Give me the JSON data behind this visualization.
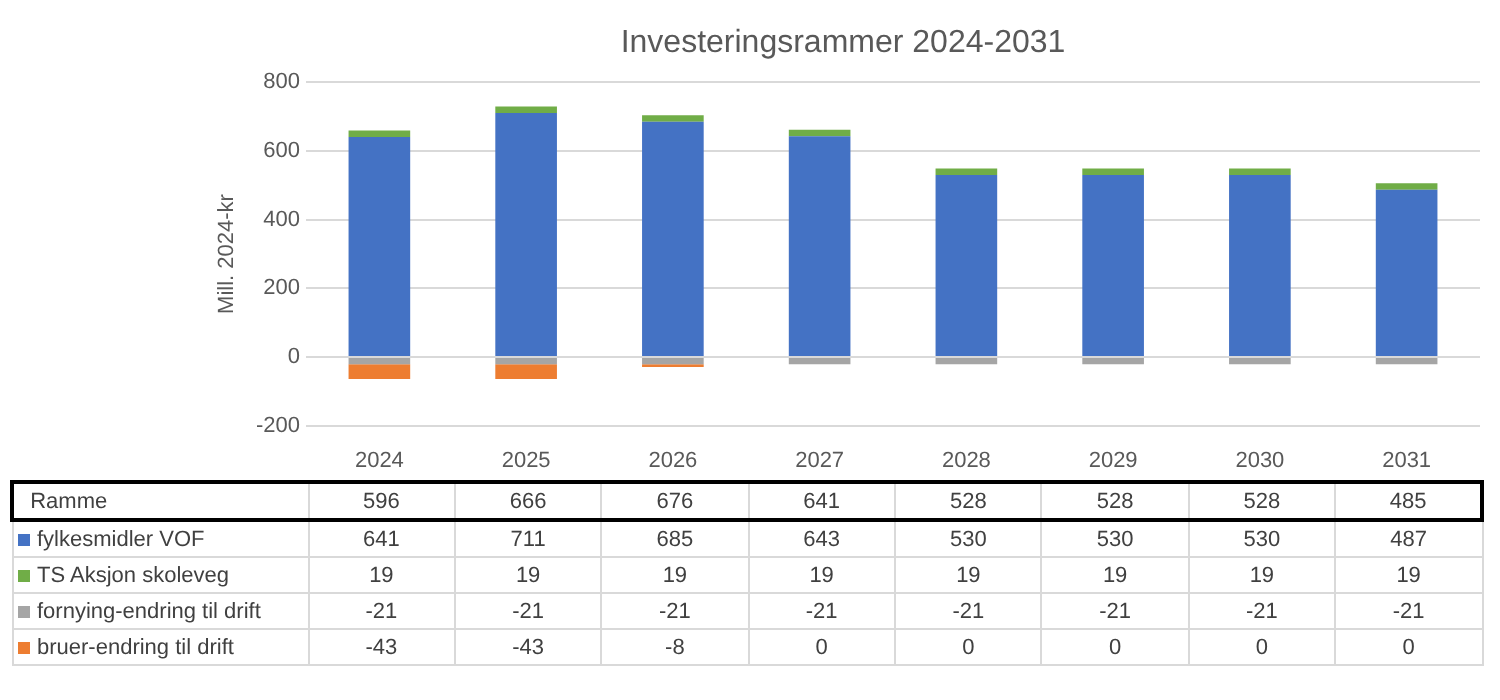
{
  "chart_data": {
    "type": "bar",
    "title": "Investeringsrammer 2024-2031",
    "ylabel": "Mill. 2024-kr",
    "stacked": true,
    "categories": [
      "2024",
      "2025",
      "2026",
      "2027",
      "2028",
      "2029",
      "2030",
      "2031"
    ],
    "series": [
      {
        "name": "fylkesmidler VOF",
        "color": "#4472c4",
        "values": [
          641,
          711,
          685,
          643,
          530,
          530,
          530,
          487
        ]
      },
      {
        "name": "TS Aksjon skoleveg",
        "color": "#70ad47",
        "values": [
          19,
          19,
          19,
          19,
          19,
          19,
          19,
          19
        ]
      },
      {
        "name": "fornying-endring til drift",
        "color": "#a5a5a5",
        "values": [
          -21,
          -21,
          -21,
          -21,
          -21,
          -21,
          -21,
          -21
        ]
      },
      {
        "name": "bruer-endring til drift",
        "color": "#ed7d31",
        "values": [
          -43,
          -43,
          -8,
          0,
          0,
          0,
          0,
          0
        ]
      }
    ],
    "annotations": [
      "Ramme",
      "596",
      "666",
      "676",
      "641",
      "528",
      "528",
      "528",
      "485"
    ],
    "data_labels": true,
    "ylim": [
      -200,
      800
    ],
    "yticks": [
      -200,
      0,
      200,
      400,
      600,
      800
    ],
    "grid": "y",
    "legend": "bottom"
  }
}
